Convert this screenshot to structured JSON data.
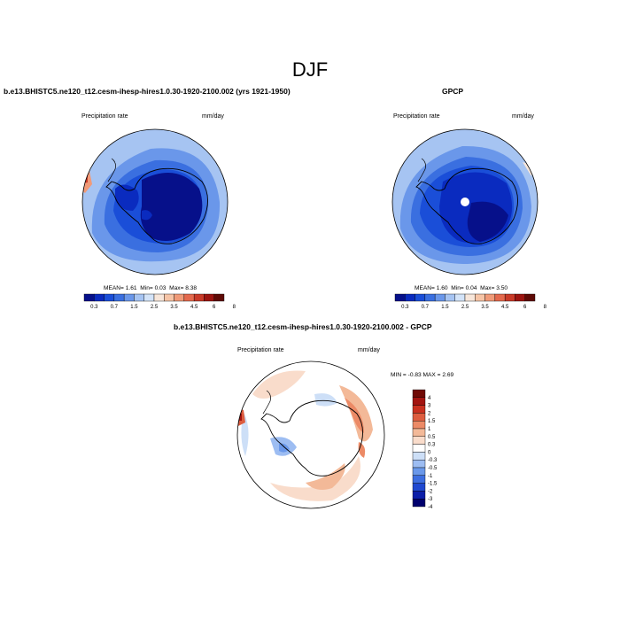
{
  "figure": {
    "title": "DJF"
  },
  "colors": {
    "land_outline": "#000000",
    "abs_scale": [
      "#06108a",
      "#0a2bbf",
      "#1a4ed8",
      "#3a6fe0",
      "#6a97ea",
      "#a6c4f2",
      "#d3e3f8",
      "#f7e6da",
      "#f6c4a6",
      "#f09a78",
      "#e4694d",
      "#c93a28",
      "#9c1410",
      "#5e0a06"
    ],
    "diff_scale": [
      "#00006e",
      "#0b1ea8",
      "#1f48d0",
      "#3d6ee0",
      "#6a98ea",
      "#9dbdf2",
      "#cddff7",
      "#ffffff",
      "#f9dccb",
      "#f3b998",
      "#ec8a66",
      "#dd5d3f",
      "#c9301f",
      "#a31410",
      "#700a05"
    ]
  },
  "panels": {
    "model": {
      "title": "b.e13.BHISTC5.ne120_t12.cesm-ihesp-hires1.0.30-1920-2100.002 (yrs 1921-1950)",
      "variable": "Precipitation rate",
      "units": "mm/day",
      "stats": {
        "mean_label": "MEAN=",
        "mean": "1.61",
        "min_label": "Min=",
        "min": "0.03",
        "max_label": "Max=",
        "max": "8.38"
      }
    },
    "obs": {
      "title": "GPCP",
      "variable": "Precipitation rate",
      "units": "mm/day",
      "stats": {
        "mean_label": "MEAN=",
        "mean": "1.60",
        "min_label": "Min=",
        "min": "0.04",
        "max_label": "Max=",
        "max": "3.50"
      }
    },
    "diff": {
      "title": "b.e13.BHISTC5.ne120_t12.cesm-ihesp-hires1.0.30-1920-2100.002 - GPCP",
      "variable": "Precipitation rate",
      "units": "mm/day",
      "stats": {
        "min_label": "MIN =",
        "min": "-0.83",
        "max_label": "MAX =",
        "max": "2.69"
      }
    }
  },
  "chart_data": [
    {
      "type": "heatmap",
      "projection": "south-polar-stereographic",
      "title": "b.e13.BHISTC5.ne120_t12.cesm-ihesp-hires1.0.30-1920-2100.002 (yrs 1921-1950)",
      "variable": "Precipitation rate",
      "units": "mm/day",
      "colorbar_levels": [
        0.3,
        0.7,
        1,
        1.5,
        2,
        2.5,
        3,
        3.5,
        4,
        4.5,
        5,
        6,
        7,
        8
      ],
      "colorbar_tick_labels": [
        "0.3",
        "0.7",
        "1.5",
        "2.5",
        "3.5",
        "4.5",
        "6",
        "8"
      ],
      "mean": 1.61,
      "min": 0.03,
      "max": 8.38
    },
    {
      "type": "heatmap",
      "projection": "south-polar-stereographic",
      "title": "GPCP",
      "variable": "Precipitation rate",
      "units": "mm/day",
      "colorbar_levels": [
        0.3,
        0.7,
        1,
        1.5,
        2,
        2.5,
        3,
        3.5,
        4,
        4.5,
        5,
        6,
        7,
        8
      ],
      "colorbar_tick_labels": [
        "0.3",
        "0.7",
        "1.5",
        "2.5",
        "3.5",
        "4.5",
        "6",
        "8"
      ],
      "mean": 1.6,
      "min": 0.04,
      "max": 3.5
    },
    {
      "type": "heatmap",
      "projection": "south-polar-stereographic",
      "title": "b.e13.BHISTC5.ne120_t12.cesm-ihesp-hires1.0.30-1920-2100.002 - GPCP",
      "variable": "Precipitation rate",
      "units": "mm/day",
      "colorbar_levels": [
        -4,
        -3,
        -2,
        -1.5,
        -1,
        -0.5,
        -0.3,
        0,
        0.3,
        0.5,
        1,
        1.5,
        2,
        3,
        4
      ],
      "colorbar_tick_labels": [
        "4",
        "3",
        "2",
        "1.5",
        "1",
        "0.5",
        "0.3",
        "0",
        "-0.3",
        "-0.5",
        "-1",
        "-1.5",
        "-2",
        "-3",
        "-4"
      ],
      "min": -0.83,
      "max": 2.69
    }
  ]
}
